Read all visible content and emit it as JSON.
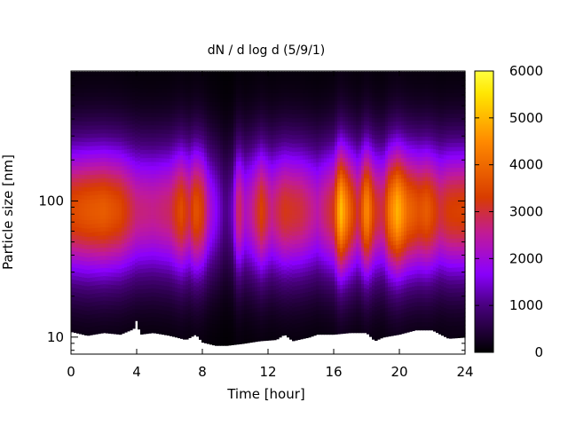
{
  "chart_data": {
    "type": "heatmap",
    "title": "dN / d log d (5/9/1)",
    "xlabel": "Time [hour]",
    "ylabel": "Particle size [nm]",
    "xlim": [
      0,
      24
    ],
    "x_ticks": [
      0,
      4,
      8,
      12,
      16,
      20,
      24
    ],
    "ylim": [
      7.5,
      900
    ],
    "yscale": "log",
    "y_ticks": [
      10,
      100
    ],
    "colorbar": {
      "range": [
        0,
        6000
      ],
      "ticks": [
        0,
        1000,
        2000,
        3000,
        4000,
        5000,
        6000
      ],
      "colormap": "black-purple-magenta-red-orange-yellow",
      "stops": [
        "#000000",
        "#4a0080",
        "#8a00ff",
        "#c01a9a",
        "#d83c00",
        "#ff8a00",
        "#ffe600",
        "#ffff40"
      ]
    },
    "grid": false,
    "size_mode": {
      "peak_diameter_nm": 85,
      "log_width": 0.34
    },
    "intensity_by_hour": [
      {
        "hour": 0.0,
        "peak": 3500
      },
      {
        "hour": 1.0,
        "peak": 3700
      },
      {
        "hour": 2.0,
        "peak": 3800
      },
      {
        "hour": 3.0,
        "peak": 3500
      },
      {
        "hour": 4.0,
        "peak": 2700
      },
      {
        "hour": 5.0,
        "peak": 2600
      },
      {
        "hour": 6.0,
        "peak": 2800
      },
      {
        "hour": 6.7,
        "peak": 3600
      },
      {
        "hour": 7.2,
        "peak": 3000
      },
      {
        "hour": 7.6,
        "peak": 3700
      },
      {
        "hour": 8.0,
        "peak": 3300
      },
      {
        "hour": 8.4,
        "peak": 2200
      },
      {
        "hour": 9.0,
        "peak": 1500
      },
      {
        "hour": 9.4,
        "peak": 1000
      },
      {
        "hour": 9.8,
        "peak": 1300
      },
      {
        "hour": 10.2,
        "peak": 3000
      },
      {
        "hour": 10.6,
        "peak": 2200
      },
      {
        "hour": 11.0,
        "peak": 2500
      },
      {
        "hour": 11.6,
        "peak": 3400
      },
      {
        "hour": 12.2,
        "peak": 2600
      },
      {
        "hour": 13.0,
        "peak": 3200
      },
      {
        "hour": 14.0,
        "peak": 3000
      },
      {
        "hour": 15.0,
        "peak": 2400
      },
      {
        "hour": 16.0,
        "peak": 3200
      },
      {
        "hour": 16.4,
        "peak": 5200
      },
      {
        "hour": 17.0,
        "peak": 3800
      },
      {
        "hour": 17.5,
        "peak": 2900
      },
      {
        "hour": 18.0,
        "peak": 4600
      },
      {
        "hour": 18.5,
        "peak": 3200
      },
      {
        "hour": 19.0,
        "peak": 2900
      },
      {
        "hour": 19.4,
        "peak": 4200
      },
      {
        "hour": 19.9,
        "peak": 5000
      },
      {
        "hour": 20.5,
        "peak": 4000
      },
      {
        "hour": 21.2,
        "peak": 3600
      },
      {
        "hour": 21.7,
        "peak": 3800
      },
      {
        "hour": 22.5,
        "peak": 3000
      },
      {
        "hour": 23.0,
        "peak": 3300
      },
      {
        "hour": 24.0,
        "peak": 3400
      }
    ],
    "min_measured_size_nm": [
      {
        "hour": 0.0,
        "nm": 11.0
      },
      {
        "hour": 1.0,
        "nm": 10.3
      },
      {
        "hour": 2.0,
        "nm": 10.8
      },
      {
        "hour": 3.0,
        "nm": 10.5
      },
      {
        "hour": 3.8,
        "nm": 11.5
      },
      {
        "hour": 4.0,
        "nm": 13.5
      },
      {
        "hour": 4.2,
        "nm": 10.5
      },
      {
        "hour": 5.0,
        "nm": 10.8
      },
      {
        "hour": 6.0,
        "nm": 10.3
      },
      {
        "hour": 7.0,
        "nm": 9.6
      },
      {
        "hour": 7.6,
        "nm": 10.5
      },
      {
        "hour": 8.0,
        "nm": 9.2
      },
      {
        "hour": 8.8,
        "nm": 8.7
      },
      {
        "hour": 9.5,
        "nm": 8.7
      },
      {
        "hour": 10.5,
        "nm": 9.0
      },
      {
        "hour": 11.5,
        "nm": 9.4
      },
      {
        "hour": 12.5,
        "nm": 9.6
      },
      {
        "hour": 13.0,
        "nm": 10.5
      },
      {
        "hour": 13.5,
        "nm": 9.4
      },
      {
        "hour": 14.5,
        "nm": 10.0
      },
      {
        "hour": 15.0,
        "nm": 10.5
      },
      {
        "hour": 16.0,
        "nm": 10.5
      },
      {
        "hour": 17.0,
        "nm": 10.8
      },
      {
        "hour": 18.0,
        "nm": 10.8
      },
      {
        "hour": 18.5,
        "nm": 9.4
      },
      {
        "hour": 19.0,
        "nm": 10.0
      },
      {
        "hour": 20.0,
        "nm": 10.5
      },
      {
        "hour": 21.0,
        "nm": 11.3
      },
      {
        "hour": 22.0,
        "nm": 11.3
      },
      {
        "hour": 22.5,
        "nm": 10.5
      },
      {
        "hour": 23.0,
        "nm": 9.8
      },
      {
        "hour": 24.0,
        "nm": 10.0
      }
    ],
    "max_measured_size_nm": 890
  }
}
